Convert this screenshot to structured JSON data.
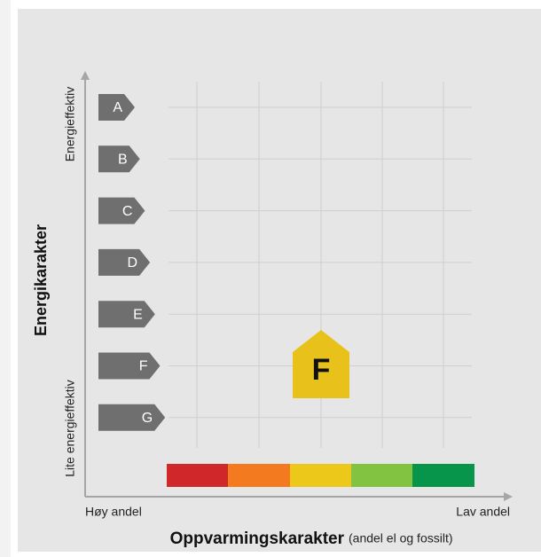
{
  "y_axis": {
    "title": "Energikarakter",
    "top_label": "Energieffektiv",
    "bottom_label": "Lite energieffektiv"
  },
  "ratings": [
    "A",
    "B",
    "C",
    "D",
    "E",
    "F",
    "G"
  ],
  "x_axis": {
    "title": "Oppvarmingskarakter",
    "subtitle": "(andel el og fossilt)",
    "left_label": "Høy andel",
    "right_label": "Lav andel"
  },
  "result": {
    "energy_grade": "F"
  }
}
